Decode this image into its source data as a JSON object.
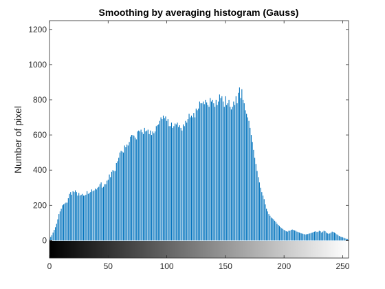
{
  "chart_data": {
    "type": "bar",
    "title": "Smoothing by averaging histogram (Gauss)",
    "xlabel": "",
    "ylabel": "Number of pixel",
    "xlim": [
      0,
      255
    ],
    "ylim": [
      -100,
      1250
    ],
    "xticks": [
      0,
      50,
      100,
      150,
      200,
      250
    ],
    "yticks": [
      0,
      200,
      400,
      600,
      800,
      1000,
      1200
    ],
    "grid": false,
    "bar_color": "#0072BD",
    "colorbar": "grayscale gradient from black (0) to white (255) below zero",
    "x_start": 0,
    "x_step": 1,
    "values": [
      10,
      20,
      30,
      45,
      60,
      75,
      95,
      120,
      150,
      165,
      180,
      200,
      205,
      210,
      215,
      215,
      240,
      265,
      275,
      260,
      280,
      275,
      285,
      275,
      255,
      270,
      255,
      260,
      265,
      255,
      255,
      260,
      280,
      265,
      270,
      275,
      290,
      280,
      285,
      295,
      290,
      300,
      305,
      320,
      330,
      300,
      305,
      320,
      320,
      340,
      345,
      375,
      360,
      390,
      400,
      395,
      395,
      440,
      450,
      470,
      500,
      510,
      505,
      500,
      540,
      530,
      545,
      540,
      560,
      590,
      600,
      600,
      595,
      585,
      575,
      620,
      625,
      620,
      630,
      615,
      605,
      640,
      620,
      625,
      630,
      605,
      625,
      600,
      620,
      610,
      620,
      650,
      655,
      660,
      680,
      700,
      690,
      710,
      695,
      705,
      680,
      690,
      650,
      650,
      670,
      640,
      650,
      665,
      660,
      670,
      645,
      655,
      640,
      625,
      660,
      650,
      680,
      670,
      690,
      720,
      700,
      710,
      700,
      725,
      700,
      750,
      740,
      750,
      790,
      780,
      780,
      790,
      775,
      800,
      785,
      770,
      760,
      810,
      790,
      800,
      780,
      760,
      800,
      770,
      790,
      830,
      810,
      820,
      790,
      760,
      820,
      770,
      780,
      800,
      760,
      745,
      760,
      790,
      770,
      820,
      780,
      840,
      870,
      810,
      860,
      800,
      780,
      740,
      720,
      700,
      680,
      640,
      600,
      560,
      515,
      470,
      435,
      395,
      360,
      330,
      300,
      275,
      255,
      235,
      205,
      180,
      165,
      150,
      140,
      130,
      125,
      120,
      112,
      105,
      95,
      88,
      82,
      75,
      70,
      65,
      60,
      55,
      52,
      50,
      55,
      55,
      60,
      62,
      60,
      57,
      55,
      50,
      48,
      45,
      42,
      40,
      38,
      36,
      34,
      35,
      36,
      38,
      40,
      42,
      45,
      48,
      50,
      52,
      48,
      50,
      55,
      52,
      45,
      50,
      55,
      52,
      45,
      40,
      38,
      40,
      45,
      50,
      48,
      45,
      40,
      35,
      30,
      25,
      22,
      20,
      18,
      15,
      12,
      10,
      8,
      5
    ]
  }
}
